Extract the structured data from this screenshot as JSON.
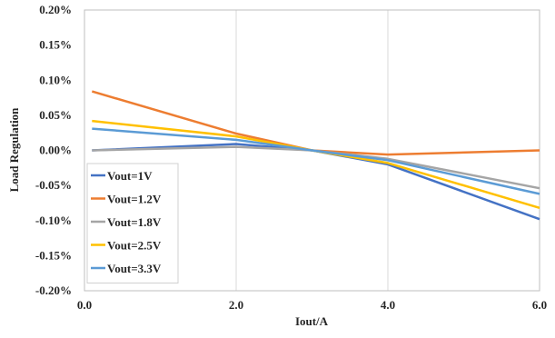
{
  "chart_data": {
    "type": "line",
    "title": "",
    "xlabel": "Iout/A",
    "ylabel": "Load Regulation",
    "xlim": [
      0,
      6
    ],
    "ylim": [
      -0.2,
      0.2
    ],
    "x_ticks": [
      0,
      2,
      4,
      6
    ],
    "x_tick_labels": [
      "0.0",
      "2.0",
      "4.0",
      "6.0"
    ],
    "y_ticks": [
      0.2,
      0.15,
      0.1,
      0.05,
      0.0,
      -0.05,
      -0.1,
      -0.15,
      -0.2
    ],
    "y_tick_labels": [
      "0.20%",
      "0.15%",
      "0.10%",
      "0.05%",
      "0.00%",
      "-0.05%",
      "-0.10%",
      "-0.15%",
      "-0.20%"
    ],
    "grid": "vertical",
    "legend_position": "bottom-left",
    "x": [
      0.1,
      2.0,
      3.0,
      4.0,
      6.0
    ],
    "series": [
      {
        "name": "Vout=1V",
        "color": "#4472C4",
        "values": [
          0.0,
          0.009,
          0.0,
          -0.02,
          -0.098
        ]
      },
      {
        "name": "Vout=1.2V",
        "color": "#ED7D31",
        "values": [
          0.084,
          0.024,
          0.0,
          -0.006,
          0.0
        ]
      },
      {
        "name": "Vout=1.8V",
        "color": "#A5A5A5",
        "values": [
          0.0,
          0.005,
          0.0,
          -0.012,
          -0.054
        ]
      },
      {
        "name": "Vout=2.5V",
        "color": "#FFC000",
        "values": [
          0.042,
          0.02,
          0.0,
          -0.018,
          -0.082
        ]
      },
      {
        "name": "Vout=3.3V",
        "color": "#5B9BD5",
        "values": [
          0.031,
          0.015,
          0.0,
          -0.014,
          -0.062
        ]
      }
    ]
  }
}
